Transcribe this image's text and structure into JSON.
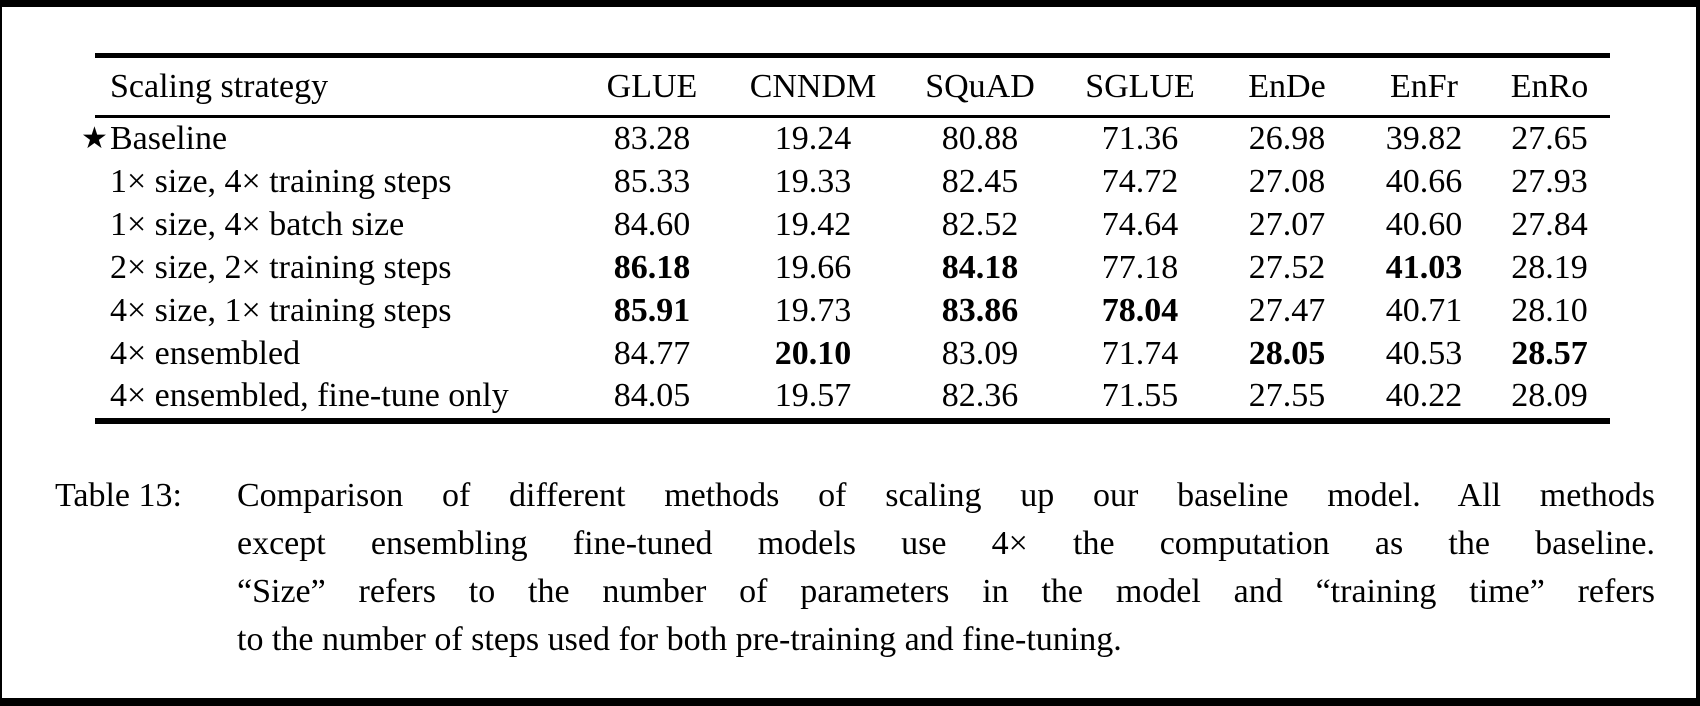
{
  "colors": {
    "background": "#ffffff",
    "text": "#000000",
    "frame": "#000000"
  },
  "icons": {
    "baseline_star": "★"
  },
  "table": {
    "columns": [
      "Scaling strategy",
      "GLUE",
      "CNNDM",
      "SQuAD",
      "SGLUE",
      "EnDe",
      "EnFr",
      "EnRo"
    ],
    "rows": [
      {
        "label": "Baseline",
        "starred": true,
        "values": [
          "83.28",
          "19.24",
          "80.88",
          "71.36",
          "26.98",
          "39.82",
          "27.65"
        ],
        "bold": [
          false,
          false,
          false,
          false,
          false,
          false,
          false
        ]
      },
      {
        "label": "1× size, 4× training steps",
        "starred": false,
        "values": [
          "85.33",
          "19.33",
          "82.45",
          "74.72",
          "27.08",
          "40.66",
          "27.93"
        ],
        "bold": [
          false,
          false,
          false,
          false,
          false,
          false,
          false
        ]
      },
      {
        "label": "1× size, 4× batch size",
        "starred": false,
        "values": [
          "84.60",
          "19.42",
          "82.52",
          "74.64",
          "27.07",
          "40.60",
          "27.84"
        ],
        "bold": [
          false,
          false,
          false,
          false,
          false,
          false,
          false
        ]
      },
      {
        "label": "2× size, 2× training steps",
        "starred": false,
        "values": [
          "86.18",
          "19.66",
          "84.18",
          "77.18",
          "27.52",
          "41.03",
          "28.19"
        ],
        "bold": [
          true,
          false,
          true,
          false,
          false,
          true,
          false
        ]
      },
      {
        "label": "4× size, 1× training steps",
        "starred": false,
        "values": [
          "85.91",
          "19.73",
          "83.86",
          "78.04",
          "27.47",
          "40.71",
          "28.10"
        ],
        "bold": [
          true,
          false,
          true,
          true,
          false,
          false,
          false
        ]
      },
      {
        "label": "4× ensembled",
        "starred": false,
        "values": [
          "84.77",
          "20.10",
          "83.09",
          "71.74",
          "28.05",
          "40.53",
          "28.57"
        ],
        "bold": [
          false,
          true,
          false,
          false,
          true,
          false,
          true
        ]
      },
      {
        "label": "4× ensembled, fine-tune only",
        "starred": false,
        "values": [
          "84.05",
          "19.57",
          "82.36",
          "71.55",
          "27.55",
          "40.22",
          "28.09"
        ],
        "bold": [
          false,
          false,
          false,
          false,
          false,
          false,
          false
        ]
      }
    ]
  },
  "caption": {
    "label": "Table 13:",
    "lines": [
      "Comparison of different methods of scaling up our baseline model. All methods",
      "except ensembling fine-tuned models use 4× the computation as the baseline.",
      "“Size” refers to the number of parameters in the model and “training time” refers",
      "to the number of steps used for both pre-training and fine-tuning."
    ]
  }
}
